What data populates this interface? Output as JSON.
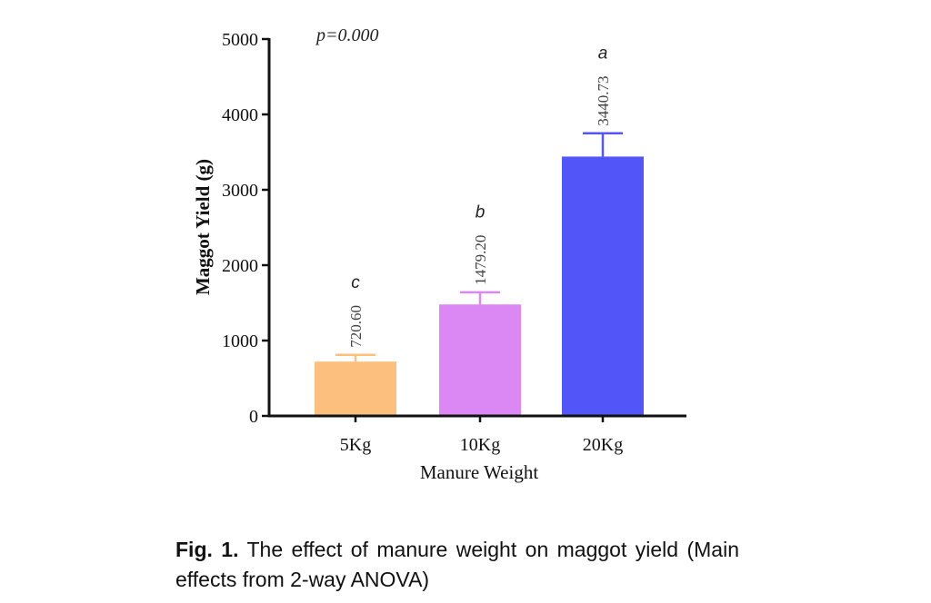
{
  "chart_data": {
    "type": "bar",
    "categories": [
      "5Kg",
      "10Kg",
      "20Kg"
    ],
    "values": [
      720.6,
      1479.2,
      3440.73
    ],
    "value_labels": [
      "720.60",
      "1479.20",
      "3440.73"
    ],
    "error_upper": [
      810,
      1640,
      3750
    ],
    "significance_letters": [
      "c",
      "b",
      "a"
    ],
    "colors": [
      "#FDBF7E",
      "#DC88F4",
      "#5255F8"
    ],
    "annotation": "p=0.000",
    "xlabel": "Manure Weight",
    "ylabel": "Maggot Yield (g)",
    "ylim": [
      0,
      5000
    ],
    "yticks": [
      0,
      1000,
      2000,
      3000,
      4000,
      5000
    ],
    "ytick_labels": [
      "0",
      "1000",
      "2000",
      "3000",
      "4000",
      "5000"
    ],
    "grid": false,
    "legend": "none"
  },
  "caption": {
    "label": "Fig. 1.",
    "text": " The effect of manure weight on maggot yield (Main effects from 2-way ANOVA)"
  }
}
